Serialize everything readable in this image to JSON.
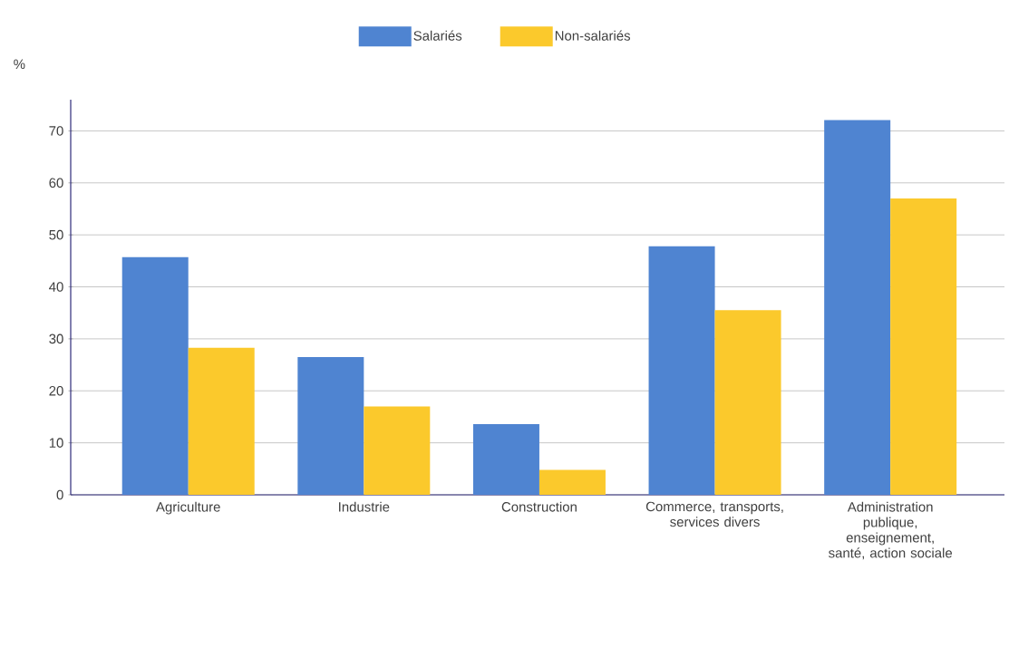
{
  "chart_data": {
    "type": "bar",
    "ylabel": "%",
    "categories": [
      "Agriculture",
      "Industrie",
      "Construction",
      "Commerce, transports, services divers",
      "Administration publique, enseignement, santé, action sociale"
    ],
    "series": [
      {
        "name": "Salariés",
        "color": "#4f84d1",
        "values": [
          45.7,
          26.5,
          13.6,
          47.8,
          72.1
        ]
      },
      {
        "name": "Non-salariés",
        "color": "#fbc92c",
        "values": [
          28.3,
          17.0,
          4.8,
          35.5,
          57.0
        ]
      }
    ],
    "ylim": [
      0,
      76
    ],
    "yticks": [
      0,
      10,
      20,
      30,
      40,
      50,
      60,
      70
    ],
    "grid": "y",
    "legend": "top"
  }
}
